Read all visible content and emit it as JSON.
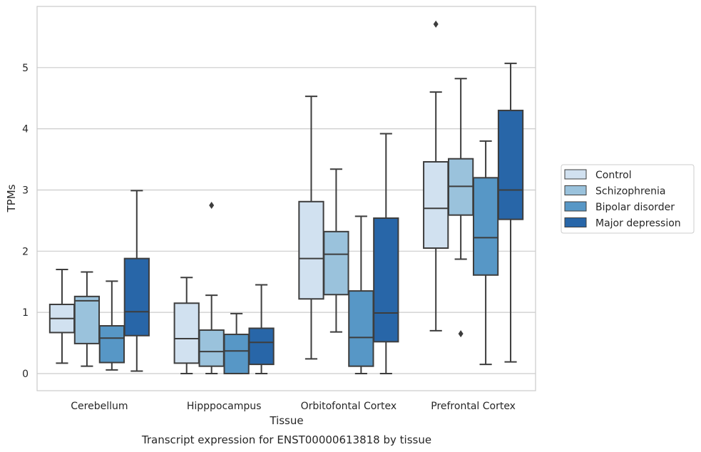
{
  "chart_data": {
    "type": "boxplot",
    "title": "",
    "caption": "Transcript expression for ENST00000613818 by tissue",
    "xlabel": "Tissue",
    "ylabel": "TPMs",
    "ylim": [
      -0.28,
      6.0
    ],
    "yticks": [
      "0",
      "1",
      "2",
      "3",
      "4",
      "5"
    ],
    "grid": "horizontal",
    "legend_position": "right",
    "categories": [
      "Cerebellum",
      "Hipppocampus",
      "Orbitofontal Cortex",
      "Prefrontal Cortex"
    ],
    "series": [
      {
        "name": "Control",
        "color": "#d1e1f0",
        "boxes": [
          {
            "whislo": 0.17,
            "q1": 0.67,
            "med": 0.9,
            "q3": 1.13,
            "whishi": 1.7,
            "fliers": []
          },
          {
            "whislo": 0.0,
            "q1": 0.17,
            "med": 0.57,
            "q3": 1.15,
            "whishi": 1.57,
            "fliers": []
          },
          {
            "whislo": 0.24,
            "q1": 1.22,
            "med": 1.88,
            "q3": 2.81,
            "whishi": 4.53,
            "fliers": []
          },
          {
            "whislo": 0.7,
            "q1": 2.05,
            "med": 2.7,
            "q3": 3.46,
            "whishi": 4.6,
            "fliers": [
              5.71
            ]
          }
        ]
      },
      {
        "name": "Schizophrenia",
        "color": "#9ac2dc",
        "boxes": [
          {
            "whislo": 0.12,
            "q1": 0.49,
            "med": 1.19,
            "q3": 1.26,
            "whishi": 1.66,
            "fliers": []
          },
          {
            "whislo": 0.0,
            "q1": 0.12,
            "med": 0.36,
            "q3": 0.71,
            "whishi": 1.28,
            "fliers": [
              2.75
            ]
          },
          {
            "whislo": 0.68,
            "q1": 1.29,
            "med": 1.95,
            "q3": 2.32,
            "whishi": 3.34,
            "fliers": []
          },
          {
            "whislo": 1.87,
            "q1": 2.59,
            "med": 3.06,
            "q3": 3.51,
            "whishi": 4.82,
            "fliers": [
              0.65
            ]
          }
        ]
      },
      {
        "name": "Bipolar disorder",
        "color": "#5797c6",
        "boxes": [
          {
            "whislo": 0.06,
            "q1": 0.18,
            "med": 0.58,
            "q3": 0.78,
            "whishi": 1.51,
            "fliers": []
          },
          {
            "whislo": 0.0,
            "q1": 0.0,
            "med": 0.37,
            "q3": 0.64,
            "whishi": 0.98,
            "fliers": []
          },
          {
            "whislo": 0.0,
            "q1": 0.12,
            "med": 0.59,
            "q3": 1.35,
            "whishi": 2.57,
            "fliers": []
          },
          {
            "whislo": 0.15,
            "q1": 1.61,
            "med": 2.22,
            "q3": 3.2,
            "whishi": 3.8,
            "fliers": []
          }
        ]
      },
      {
        "name": "Major depression",
        "color": "#2866a8",
        "boxes": [
          {
            "whislo": 0.04,
            "q1": 0.62,
            "med": 1.01,
            "q3": 1.88,
            "whishi": 2.99,
            "fliers": []
          },
          {
            "whislo": 0.0,
            "q1": 0.15,
            "med": 0.51,
            "q3": 0.74,
            "whishi": 1.45,
            "fliers": []
          },
          {
            "whislo": 0.0,
            "q1": 0.52,
            "med": 0.99,
            "q3": 2.54,
            "whishi": 3.92,
            "fliers": []
          },
          {
            "whislo": 0.19,
            "q1": 2.52,
            "med": 3.0,
            "q3": 4.3,
            "whishi": 5.07,
            "fliers": []
          }
        ]
      }
    ]
  }
}
